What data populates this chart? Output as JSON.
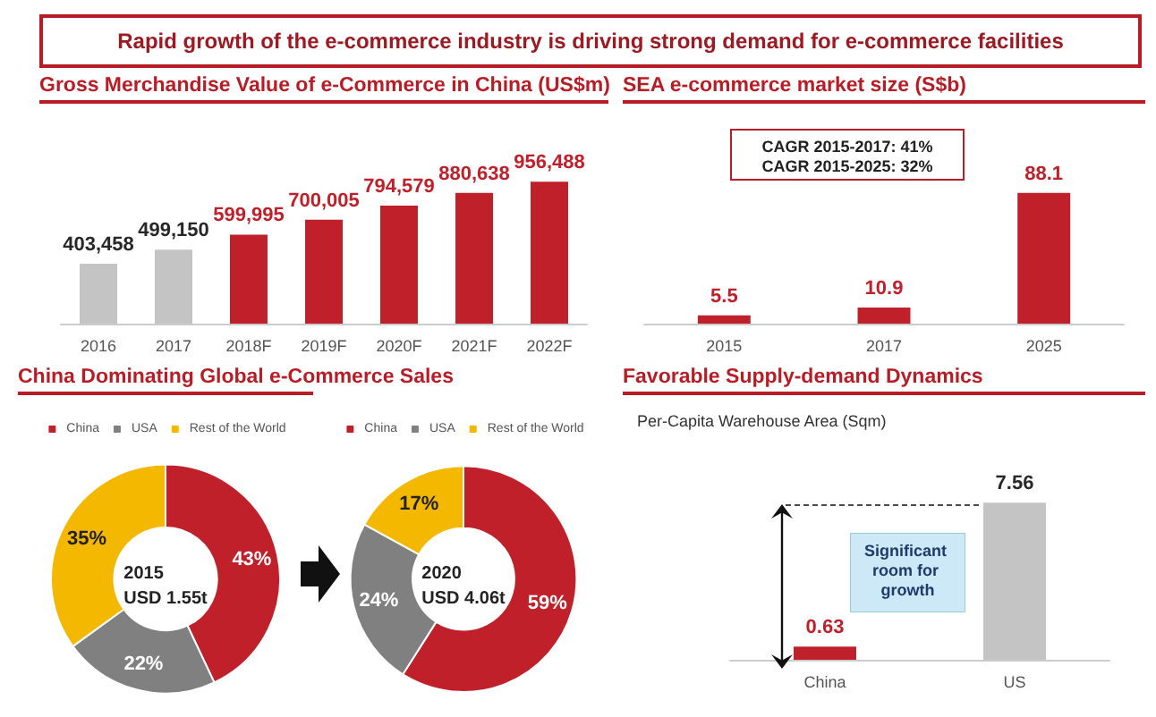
{
  "chart_data": [
    {
      "type": "bar",
      "title": "Rapid growth of the e-commerce industry is driving strong demand for e-commerce facilities",
      "subtitle": "Gross Merchandise Value of e-Commerce in China (US$m)",
      "categories": [
        "2016",
        "2017",
        "2018F",
        "2019F",
        "2020F",
        "2021F",
        "2022F"
      ],
      "values": [
        403458,
        499150,
        599995,
        700005,
        794579,
        880638,
        956488
      ],
      "colors": [
        "#c4c4c4",
        "#c4c4c4",
        "#c0202a",
        "#c0202a",
        "#c0202a",
        "#c0202a",
        "#c0202a"
      ],
      "value_labels": [
        "403,458",
        "499,150",
        "599,995",
        "700,005",
        "794,579",
        "880,638",
        "956,488"
      ]
    },
    {
      "type": "bar",
      "title": "SEA e-commerce market size (S$b)",
      "categories": [
        "2015",
        "2017",
        "2025"
      ],
      "values": [
        5.5,
        10.9,
        88.1
      ],
      "color": "#c0202a",
      "value_labels": [
        "5.5",
        "10.9",
        "88.1"
      ],
      "annotations": [
        "CAGR 2015-2017: 41%",
        "CAGR 2015-2025: 32%"
      ]
    },
    {
      "type": "donut",
      "title": "China Dominating Global e-Commerce Sales",
      "categories": [
        "China",
        "USA",
        "Rest of the World"
      ],
      "values": [
        43,
        22,
        35
      ],
      "colors": [
        "#c0202a",
        "#808080",
        "#f5b800"
      ],
      "value_labels": [
        "43%",
        "22%",
        "35%"
      ],
      "legend": "top",
      "annotations": [
        "2015",
        "USD 1.55t"
      ]
    },
    {
      "type": "donut",
      "categories": [
        "China",
        "USA",
        "Rest of the World"
      ],
      "values": [
        59,
        24,
        17
      ],
      "colors": [
        "#c0202a",
        "#808080",
        "#f5b800"
      ],
      "value_labels": [
        "59%",
        "24%",
        "17%"
      ],
      "legend": "top",
      "annotations": [
        "2020",
        "USD 4.06t"
      ]
    },
    {
      "type": "bar",
      "title": "Favorable Supply-demand Dynamics",
      "ylabel": "Per-Capita Warehouse Area (Sqm)",
      "categories": [
        "China",
        "US"
      ],
      "values": [
        0.63,
        7.56
      ],
      "colors": [
        "#c0202a",
        "#c4c4c4"
      ],
      "value_labels": [
        "0.63",
        "7.56"
      ],
      "annotations": [
        "Significant room for growth"
      ]
    }
  ]
}
